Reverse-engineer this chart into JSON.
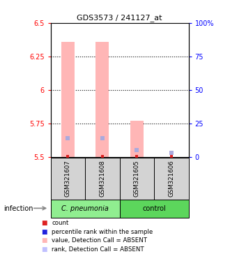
{
  "title": "GDS3573 / 241127_at",
  "samples": [
    "GSM321607",
    "GSM321608",
    "GSM321605",
    "GSM321606"
  ],
  "group1_label": "C. pneumonia",
  "group2_label": "control",
  "group1_color": "#90EE90",
  "group2_color": "#5CD65C",
  "sample_box_color": "#D3D3D3",
  "bar_color_absent": "#FFB6B6",
  "bar_color_rank_absent": "#C0C0FF",
  "ylim_left": [
    5.5,
    6.5
  ],
  "ylim_right": [
    0,
    100
  ],
  "yticks_left": [
    5.5,
    5.75,
    6.0,
    6.25,
    6.5
  ],
  "yticks_right": [
    0,
    25,
    50,
    75,
    100
  ],
  "ytick_labels_left": [
    "5.5",
    "5.75",
    "6",
    "6.25",
    "6.5"
  ],
  "ytick_labels_right": [
    "0",
    "25",
    "50",
    "75",
    "100%"
  ],
  "gridlines": [
    5.75,
    6.0,
    6.25
  ],
  "values_absent": [
    6.36,
    6.36,
    5.77,
    5.5
  ],
  "rank_absent_pct": [
    14,
    14,
    5,
    3
  ],
  "rank_marker_color": "#AAAADD",
  "count_marker_color": "#DD2222",
  "legend_items": [
    {
      "color": "#DD2222",
      "label": "count"
    },
    {
      "color": "#2222DD",
      "label": "percentile rank within the sample"
    },
    {
      "color": "#FFB6B6",
      "label": "value, Detection Call = ABSENT"
    },
    {
      "color": "#C0C0FF",
      "label": "rank, Detection Call = ABSENT"
    }
  ]
}
